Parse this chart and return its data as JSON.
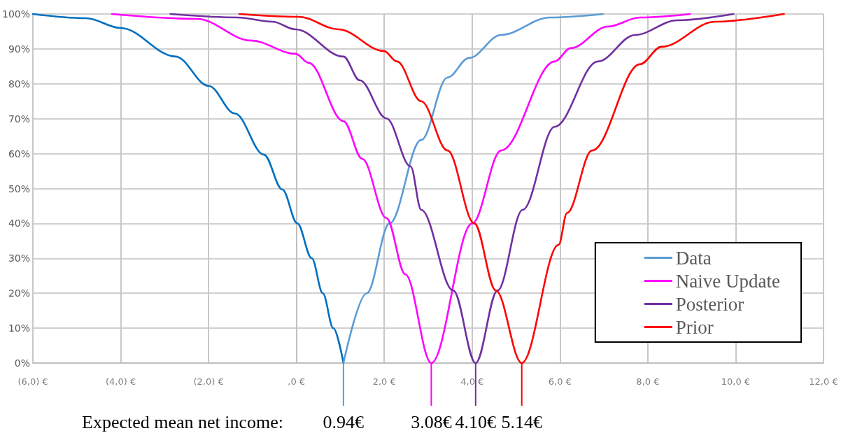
{
  "chart_data": {
    "type": "line",
    "series": [
      {
        "color": "#0070c0",
        "x": [
          -6,
          -4.79,
          -4.0,
          -2.75,
          -2.0,
          -1.4,
          -0.74,
          -0.32,
          0.02,
          0.35,
          0.6,
          0.84,
          1.07
        ],
        "values": [
          100,
          98.8,
          96,
          87.8,
          79.4,
          71.5,
          59.7,
          49.7,
          40,
          30,
          20,
          10,
          0
        ]
      },
      {
        "name": "Data",
        "color": "#5b9bd5",
        "x": [
          1.07,
          1.6,
          2.12,
          2.84,
          3.44,
          3.93,
          4.66,
          5.77,
          6.98
        ],
        "values": [
          0,
          20,
          40,
          63.9,
          81.8,
          87.4,
          94,
          99,
          100
        ]
      },
      {
        "name": "Naive Update",
        "color": "#ff00ff",
        "x": [
          -4.2,
          -2.26,
          -1.04,
          -0.02,
          0.28,
          1.07,
          1.5,
          2.05,
          2.48,
          3.07,
          4.0,
          4.66,
          5.88,
          6.24,
          7.09,
          7.82,
          8.96
        ],
        "values": [
          100,
          98.6,
          92.4,
          88.6,
          86,
          69.3,
          58.5,
          41.5,
          25.4,
          0,
          40,
          60.9,
          86.4,
          90.2,
          96.4,
          99,
          100
        ]
      },
      {
        "name": "Posterior",
        "color": "#7030a0",
        "x": [
          -2.87,
          -1.34,
          -0.55,
          -0.02,
          1.07,
          1.44,
          2.05,
          2.6,
          2.84,
          3.57,
          4.08,
          4.58,
          5.15,
          5.88,
          6.86,
          7.71,
          8.67,
          9.95
        ],
        "values": [
          100,
          99,
          97.8,
          95.6,
          87.8,
          81,
          70.1,
          56.3,
          43.9,
          20.8,
          0,
          20.8,
          43.9,
          67.7,
          86.4,
          94,
          98.2,
          100
        ]
      },
      {
        "name": "Prior",
        "color": "#ff0000",
        "x": [
          -1.3,
          0.05,
          0.96,
          1.99,
          2.29,
          2.84,
          3.44,
          4.05,
          4.54,
          5.13,
          5.97,
          6.16,
          6.73,
          7.82,
          8.31,
          9.53,
          11.1
        ],
        "values": [
          100,
          99.2,
          95.6,
          89.4,
          86.4,
          75,
          60.9,
          40,
          20.8,
          0,
          33.9,
          43,
          60.9,
          85.6,
          90.6,
          97.8,
          100
        ]
      }
    ],
    "xlim": [
      -6,
      12
    ],
    "xticks": [
      {
        "value": -6,
        "label": "(6,0) €"
      },
      {
        "value": -4,
        "label": "(4,0) €"
      },
      {
        "value": -2,
        "label": "(2,0) €"
      },
      {
        "value": 0,
        "label": ",0 €"
      },
      {
        "value": 2,
        "label": "2,0 €"
      },
      {
        "value": 4,
        "label": "4,0 €"
      },
      {
        "value": 6,
        "label": "6,0 €"
      },
      {
        "value": 8,
        "label": "8,0 €"
      },
      {
        "value": 10,
        "label": "10,0 €"
      },
      {
        "value": 12,
        "label": "12,0 €"
      }
    ],
    "ylim": [
      0,
      100
    ],
    "yticks": [
      {
        "value": 0,
        "label": "0%"
      },
      {
        "value": 10,
        "label": "10%"
      },
      {
        "value": 20,
        "label": "20%"
      },
      {
        "value": 30,
        "label": "30%"
      },
      {
        "value": 40,
        "label": "40%"
      },
      {
        "value": 50,
        "label": "50%"
      },
      {
        "value": 60,
        "label": "60%"
      },
      {
        "value": 70,
        "label": "70%"
      },
      {
        "value": 80,
        "label": "80%"
      },
      {
        "value": 90,
        "label": "90%"
      },
      {
        "value": 100,
        "label": "100%"
      }
    ],
    "grid": true,
    "legend": "bottom right",
    "marker": "none",
    "line_style": "solid",
    "annotations": [
      "Expected mean net income:",
      {
        "text": "0.94€",
        "x": 1.07,
        "y": 0
      },
      {
        "text": "3.08€",
        "x": 3.07,
        "y": 0
      },
      {
        "text": "4.10€",
        "x": 4.08,
        "y": 0
      },
      {
        "text": "5.14€",
        "x": 5.13,
        "y": 0
      }
    ]
  }
}
